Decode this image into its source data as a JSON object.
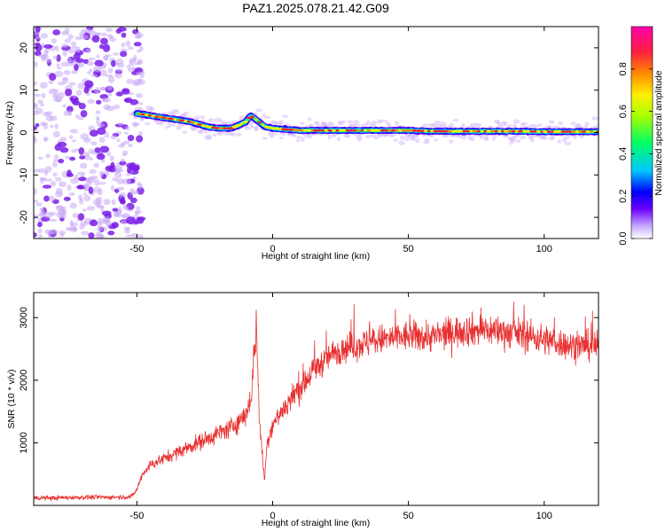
{
  "figure": {
    "title": "PAZ1.2025.078.21.42.G09"
  },
  "colors": {
    "snr_line": "#e83030",
    "scatter_noise": "#7a1ee6",
    "colormap": [
      "#ffffff",
      "#c5a6ff",
      "#6a00ff",
      "#0000ff",
      "#00c8ff",
      "#00ff66",
      "#aaff00",
      "#ffee00",
      "#ff8800",
      "#ff2040",
      "#ff00aa"
    ]
  },
  "chart_data": [
    {
      "type": "heatmap",
      "name": "spectrogram",
      "title": "PAZ1.2025.078.21.42.G09",
      "xlabel": "Height of straight line (km)",
      "ylabel": "Frequency (Hz)",
      "xlim": [
        -88,
        120
      ],
      "ylim": [
        -25,
        25
      ],
      "xticks": [
        -50,
        0,
        50,
        100
      ],
      "yticks": [
        -20,
        -10,
        0,
        10,
        20
      ],
      "colorbar": {
        "label": "Normalized spectral amplitude",
        "range": [
          0,
          1
        ],
        "ticks": [
          0.0,
          0.2,
          0.4,
          0.6,
          0.8
        ]
      },
      "noise_region": {
        "x_from": -88,
        "x_to": -50,
        "y_range": [
          -25,
          25
        ]
      },
      "signal_ridge": {
        "x": [
          -50,
          -45,
          -40,
          -35,
          -30,
          -25,
          -20,
          -15,
          -10,
          -8,
          -6,
          -3,
          0,
          10,
          20,
          30,
          40,
          50,
          60,
          70,
          80,
          90,
          100,
          110,
          120
        ],
        "y": [
          4.5,
          4.0,
          3.5,
          3.0,
          2.5,
          1.5,
          1.0,
          1.0,
          2.5,
          4.0,
          3.0,
          1.5,
          1.0,
          0.5,
          0.5,
          0.5,
          0.5,
          0.5,
          0.3,
          0.3,
          0.3,
          0.3,
          0.2,
          0.2,
          0.2
        ]
      }
    },
    {
      "type": "line",
      "name": "snr",
      "xlabel": "Height of straight line (km)",
      "ylabel": "SNR (10 * v/v)",
      "xlim": [
        -88,
        120
      ],
      "ylim": [
        0,
        3400
      ],
      "xticks": [
        -50,
        0,
        50,
        100
      ],
      "yticks": [
        1000,
        2000,
        3000
      ],
      "series": [
        {
          "x": [
            -88,
            -80,
            -70,
            -60,
            -52,
            -50,
            -48,
            -45,
            -40,
            -35,
            -30,
            -25,
            -20,
            -15,
            -10,
            -8,
            -6,
            -5,
            -4,
            -3,
            -2,
            0,
            5,
            10,
            15,
            20,
            25,
            30,
            40,
            50,
            60,
            70,
            80,
            90,
            100,
            110,
            120
          ],
          "y": [
            120,
            120,
            130,
            130,
            140,
            250,
            500,
            650,
            750,
            850,
            950,
            1050,
            1150,
            1250,
            1450,
            1700,
            2900,
            1500,
            900,
            400,
            1000,
            1300,
            1600,
            1900,
            2150,
            2350,
            2500,
            2550,
            2650,
            2700,
            2700,
            2800,
            2800,
            2750,
            2650,
            2550,
            2550
          ]
        }
      ]
    }
  ]
}
